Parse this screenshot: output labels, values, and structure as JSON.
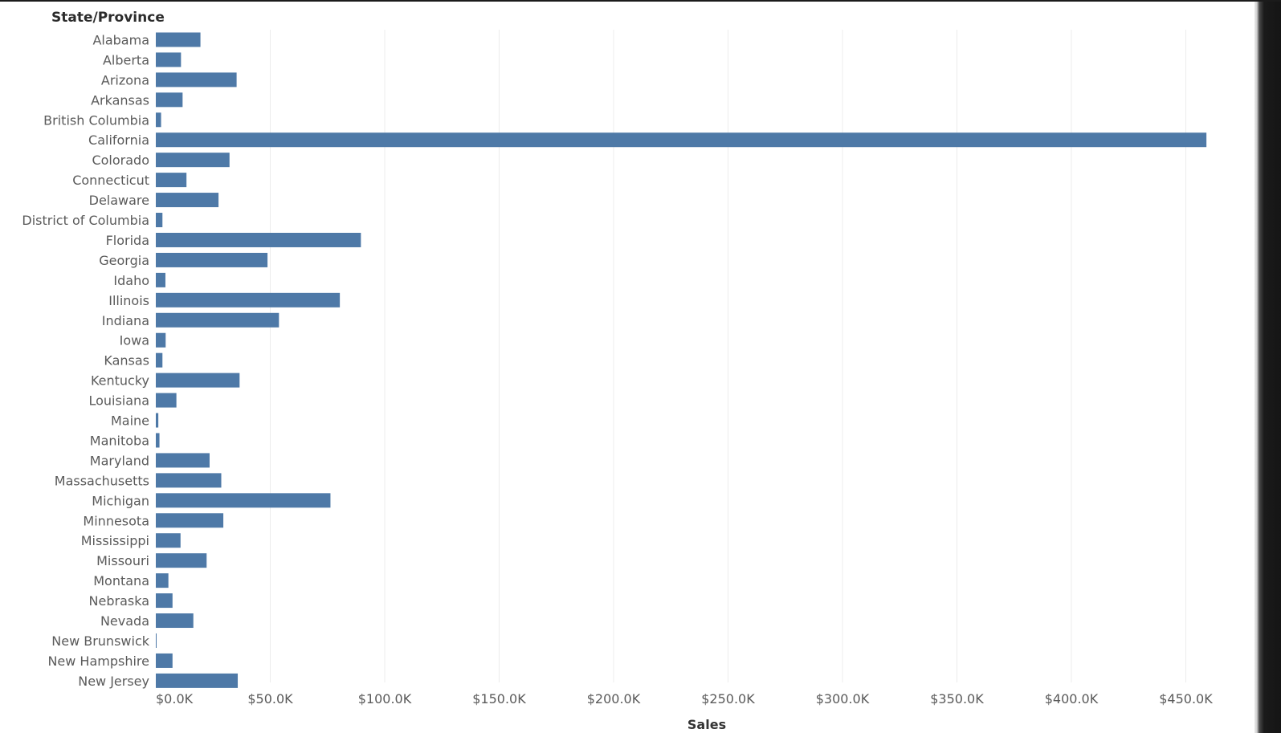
{
  "header": {
    "title": "State/Province"
  },
  "colors": {
    "bar": "#4e79a7",
    "grid": "#ececec",
    "text": "#5a5a5a"
  },
  "chart_data": {
    "type": "bar",
    "orientation": "horizontal",
    "title": "",
    "ylabel": "State/Province",
    "xlabel": "Sales",
    "xlim": [
      0,
      460000
    ],
    "grid": true,
    "categories": [
      "Alabama",
      "Alberta",
      "Arizona",
      "Arkansas",
      "British Columbia",
      "California",
      "Colorado",
      "Connecticut",
      "Delaware",
      "District of Columbia",
      "Florida",
      "Georgia",
      "Idaho",
      "Illinois",
      "Indiana",
      "Iowa",
      "Kansas",
      "Kentucky",
      "Louisiana",
      "Maine",
      "Manitoba",
      "Maryland",
      "Massachusetts",
      "Michigan",
      "Minnesota",
      "Mississippi",
      "Missouri",
      "Montana",
      "Nebraska",
      "Nevada",
      "New Brunswick",
      "New Hampshire",
      "New Jersey"
    ],
    "values": [
      19500,
      11000,
      35300,
      11700,
      2300,
      459000,
      32200,
      13400,
      27400,
      2900,
      89600,
      48800,
      4200,
      80400,
      53800,
      4300,
      2900,
      36600,
      9000,
      1100,
      1600,
      23500,
      28600,
      76300,
      29500,
      10800,
      22200,
      5500,
      7300,
      16400,
      300,
      7300,
      35800
    ],
    "x_ticks": [
      0,
      50000,
      100000,
      150000,
      200000,
      250000,
      300000,
      350000,
      400000,
      450000
    ],
    "x_tick_labels": [
      "$0.0K",
      "$50.0K",
      "$100.0K",
      "$150.0K",
      "$200.0K",
      "$250.0K",
      "$300.0K",
      "$350.0K",
      "$400.0K",
      "$450.0K"
    ]
  }
}
